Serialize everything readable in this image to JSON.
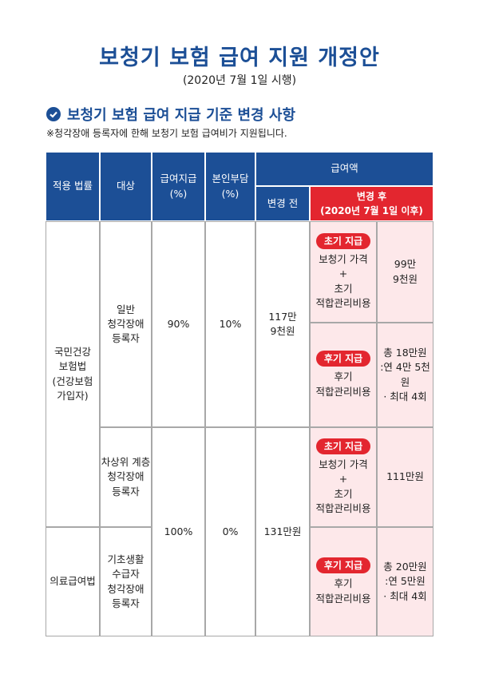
{
  "header": {
    "title": "보청기 보험 급여 지원 개정안",
    "subtitle": "(2020년 7월 1일 시행)"
  },
  "section": {
    "heading": "보청기 보험 급여 지급 기준 변경 사항",
    "note": "※청각장애 등록자에 한해 보청기 보험 급여비가 지원됩니다."
  },
  "table": {
    "columns": [
      "적용 법률",
      "대상",
      "급여지급\n(%)",
      "본인부담\n(%)"
    ],
    "amount_header": "급여액",
    "before_header": "변경 전",
    "after_header": "변경 후\n(2020년 7월 1일 이후)",
    "laws": [
      "국민건강\n보험법\n(건강보험\n가입자)",
      "의료급여법"
    ],
    "targets": [
      "일반\n청각장애\n등록자",
      "차상위 계층\n청각장애\n등록자",
      "기초생활\n수급자\n청각장애\n등록자"
    ],
    "rates": [
      {
        "pay": "90%",
        "self": "10%",
        "before": "117만\n9천원"
      },
      {
        "pay": "100%",
        "self": "0%",
        "before": "131만원"
      }
    ],
    "after": [
      {
        "badge": "초기 지급",
        "item": "보청기 가격\n+\n초기\n적합관리비용",
        "amount": "99만\n9천원"
      },
      {
        "badge": "후기 지급",
        "item": "후기\n적합관리비용",
        "amount": "총 18만원\n:연 4만 5천원\n· 최대 4회"
      },
      {
        "badge": "초기 지급",
        "item": "보청기 가격\n+\n초기\n적합관리비용",
        "amount": "111만원"
      },
      {
        "badge": "후기 지급",
        "item": "후기\n적합관리비용",
        "amount": "총 20만원\n:연 5만원\n· 최대 4회"
      }
    ]
  }
}
